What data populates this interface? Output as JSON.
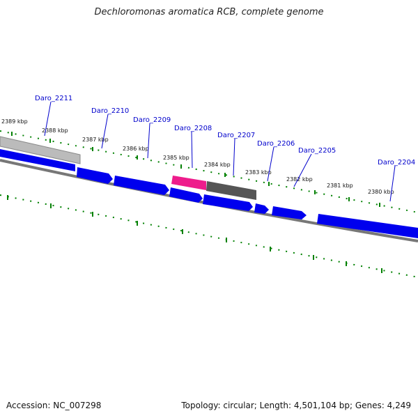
{
  "title": "Dechloromonas aromatica RCB, complete genome",
  "accession": "Accession: NC_007298",
  "summary": "Topology: circular; Length: 4,501,104 bp; Genes: 4,249",
  "colors": {
    "gene_forward": "#0000ee",
    "gene_selected": "#ee1c8c",
    "gene_dark": "#555555",
    "gene_light": "#bbbbbb",
    "backbone": "#777777",
    "tick": "#008000",
    "label_line": "#0000cc"
  },
  "kbp_labels": [
    "2389 kbp",
    "2388 kbp",
    "2387 kbp",
    "2386 kbp",
    "2385 kbp",
    "2384 kbp",
    "2383 kbp",
    "2382 kbp",
    "2381 kbp",
    "2380 kbp"
  ],
  "gene_labels": [
    "Daro_2211",
    "Daro_2210",
    "Daro_2209",
    "Daro_2208",
    "Daro_2207",
    "Daro_2206",
    "Daro_2205",
    "Daro_2204"
  ]
}
